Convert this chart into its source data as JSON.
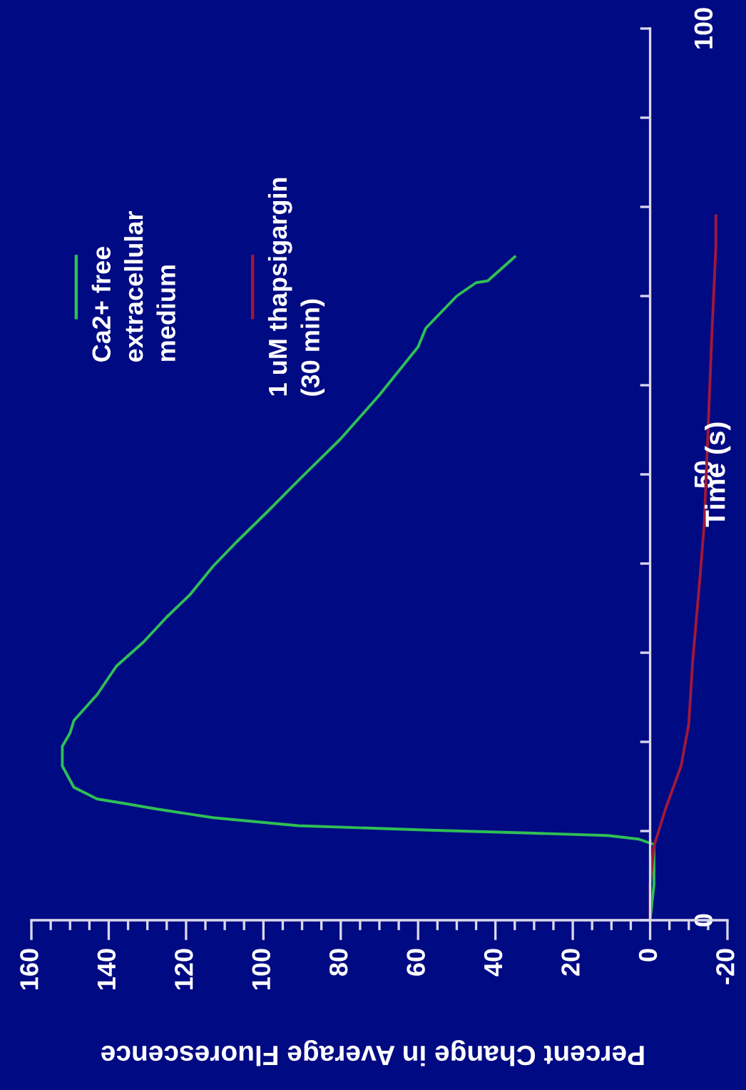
{
  "chart_data": {
    "type": "line",
    "xlabel": "Percent Change in Average Fluorescence",
    "ylabel": "Time (s)",
    "xlim": [
      160,
      -20
    ],
    "ylim": [
      0,
      100
    ],
    "yticks": [
      0,
      {
        "value": 10,
        "label": null
      },
      {
        "value": 20,
        "label": null
      },
      {
        "value": 30,
        "label": null
      },
      {
        "value": 40,
        "label": null
      },
      50,
      {
        "value": 60,
        "label": null
      },
      {
        "value": 70,
        "label": null
      },
      {
        "value": 80,
        "label": null
      },
      {
        "value": 90,
        "label": null
      },
      100
    ],
    "xticks": [
      -20,
      {
        "value": -15,
        "label": null
      },
      {
        "value": -10,
        "label": null
      },
      {
        "value": -5,
        "label": null
      },
      0,
      {
        "value": 5,
        "label": null
      },
      {
        "value": 10,
        "label": null
      },
      {
        "value": 15,
        "label": null
      },
      20,
      {
        "value": 25,
        "label": null
      },
      {
        "value": 30,
        "label": null
      },
      {
        "value": 35,
        "label": null
      },
      40,
      {
        "value": 45,
        "label": null
      },
      {
        "value": 50,
        "label": null
      },
      {
        "value": 55,
        "label": null
      },
      60,
      {
        "value": 65,
        "label": null
      },
      {
        "value": 70,
        "label": null
      },
      {
        "value": 75,
        "label": null
      },
      80,
      {
        "value": 85,
        "label": null
      },
      {
        "value": 90,
        "label": null
      },
      {
        "value": 95,
        "label": null
      },
      100,
      {
        "value": 105,
        "label": null
      },
      {
        "value": 110,
        "label": null
      },
      {
        "value": 115,
        "label": null
      },
      120,
      {
        "value": 125,
        "label": null
      },
      {
        "value": 130,
        "label": null
      },
      {
        "value": 135,
        "label": null
      },
      140,
      {
        "value": 145,
        "label": null
      },
      {
        "value": 150,
        "label": null
      },
      {
        "value": 155,
        "label": null
      },
      160
    ],
    "legend": "top left",
    "marker": "none",
    "line_style": "solid",
    "series": [
      {
        "name": "Ca2+ free\nextracellular\nmedium",
        "color": "#2fbf55",
        "values": [
          0,
          4,
          8.5,
          9.1,
          9.5,
          9.8,
          10.1,
          10.6,
          11.5,
          12.5,
          13.1,
          13.6,
          14.9,
          17.3,
          19.5,
          21,
          22.4,
          25.3,
          28.5,
          31.2,
          34,
          36.5,
          39.7,
          42.4,
          45.8,
          49.3,
          54,
          58.9,
          64.3,
          66.4,
          70,
          71.5,
          71.7,
          74.4
        ],
        "x": [
          0,
          -1,
          -1,
          3,
          11,
          33,
          57,
          91,
          113,
          128,
          136,
          143,
          149,
          152,
          152,
          150,
          149,
          143,
          138,
          131,
          125,
          119,
          113,
          107,
          99,
          91,
          80,
          70,
          60,
          58,
          50,
          45,
          42,
          35
        ]
      },
      {
        "name": "1 uM thapsigargin\n(30 min)",
        "color": "#a0183a",
        "values": [
          0,
          4,
          8.3,
          12.5,
          17.3,
          22,
          29,
          39,
          44.5,
          55.2,
          66,
          75.5,
          79
        ],
        "x": [
          0,
          0,
          -1,
          -4,
          -8,
          -10,
          -11,
          -13,
          -14,
          -15,
          -16,
          -17,
          -17
        ]
      }
    ]
  }
}
